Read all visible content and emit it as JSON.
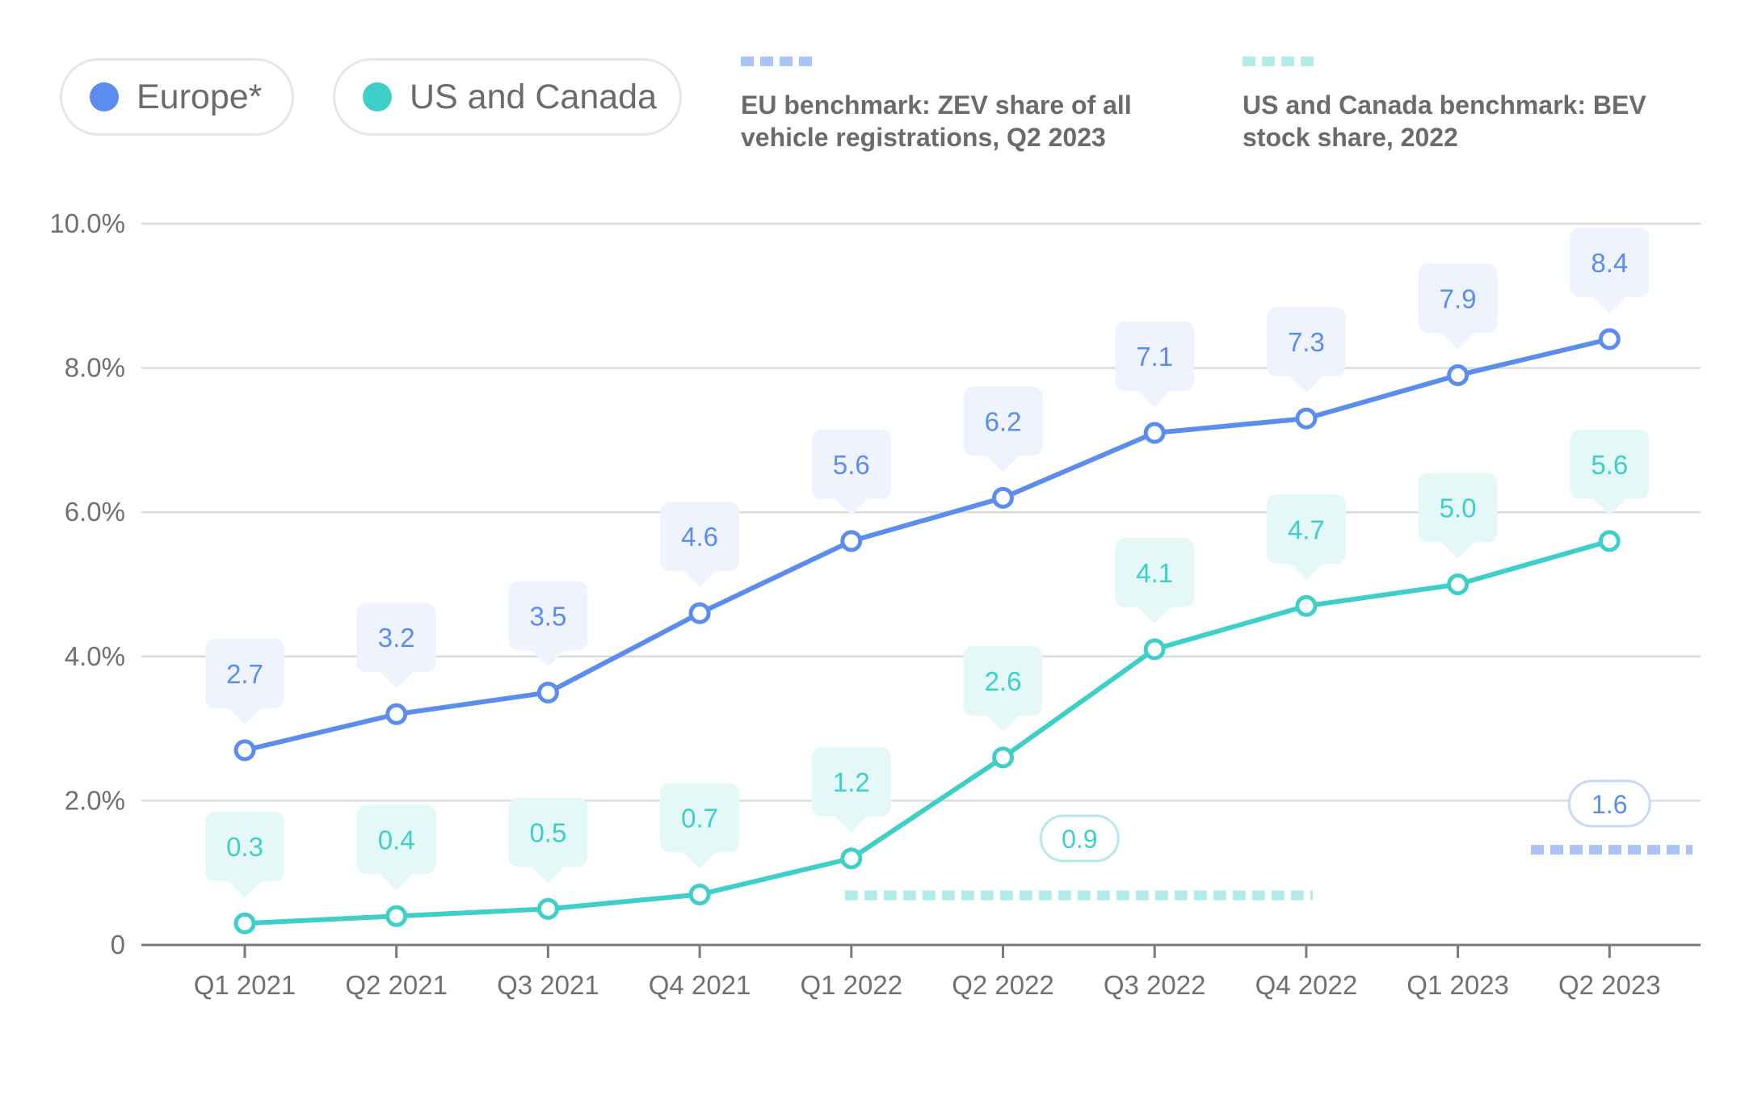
{
  "legend": {
    "europe_label": "Europe*",
    "us_label": "US and Canada",
    "eu_bench_label": "EU benchmark: ZEV share of all\nvehicle registrations, Q2 2023",
    "us_bench_label": "US and Canada benchmark: BEV\nstock share, 2022"
  },
  "colors": {
    "europe": "#5b8def",
    "europe_callout": "#eef3fd",
    "us": "#3ecfc8",
    "us_callout": "#e4f8f8",
    "europe_bench": "#a9c4f6",
    "us_bench": "#b3ebeb",
    "grid": "#dcdcdc",
    "axis": "#7a7a7a",
    "tick_text": "#707070"
  },
  "chart_data": {
    "type": "line",
    "categories": [
      "Q1 2021",
      "Q2 2021",
      "Q3 2021",
      "Q4 2021",
      "Q1 2022",
      "Q2 2022",
      "Q3 2022",
      "Q4 2022",
      "Q1 2023",
      "Q2 2023"
    ],
    "series": [
      {
        "name": "Europe*",
        "values": [
          2.7,
          3.2,
          3.5,
          4.6,
          5.6,
          6.2,
          7.1,
          7.3,
          7.9,
          8.4
        ]
      },
      {
        "name": "US and Canada",
        "values": [
          0.3,
          0.4,
          0.5,
          0.7,
          1.2,
          2.6,
          4.1,
          4.7,
          5.0,
          5.6
        ]
      }
    ],
    "benchmarks": [
      {
        "name": "EU benchmark: ZEV share of all vehicle registrations, Q2 2023",
        "value": 1.6,
        "label": "1.6",
        "from": "Q2 2023",
        "to": "Q2 2023"
      },
      {
        "name": "US and Canada benchmark: BEV stock share, 2022",
        "value": 0.9,
        "label": "0.9",
        "from": "Q1 2022",
        "to": "Q4 2022"
      }
    ],
    "yticks": [
      "0",
      "2.0%",
      "4.0%",
      "6.0%",
      "8.0%",
      "10.0%"
    ],
    "ylim": [
      0,
      10
    ],
    "grid": true,
    "legend_position": "top"
  }
}
